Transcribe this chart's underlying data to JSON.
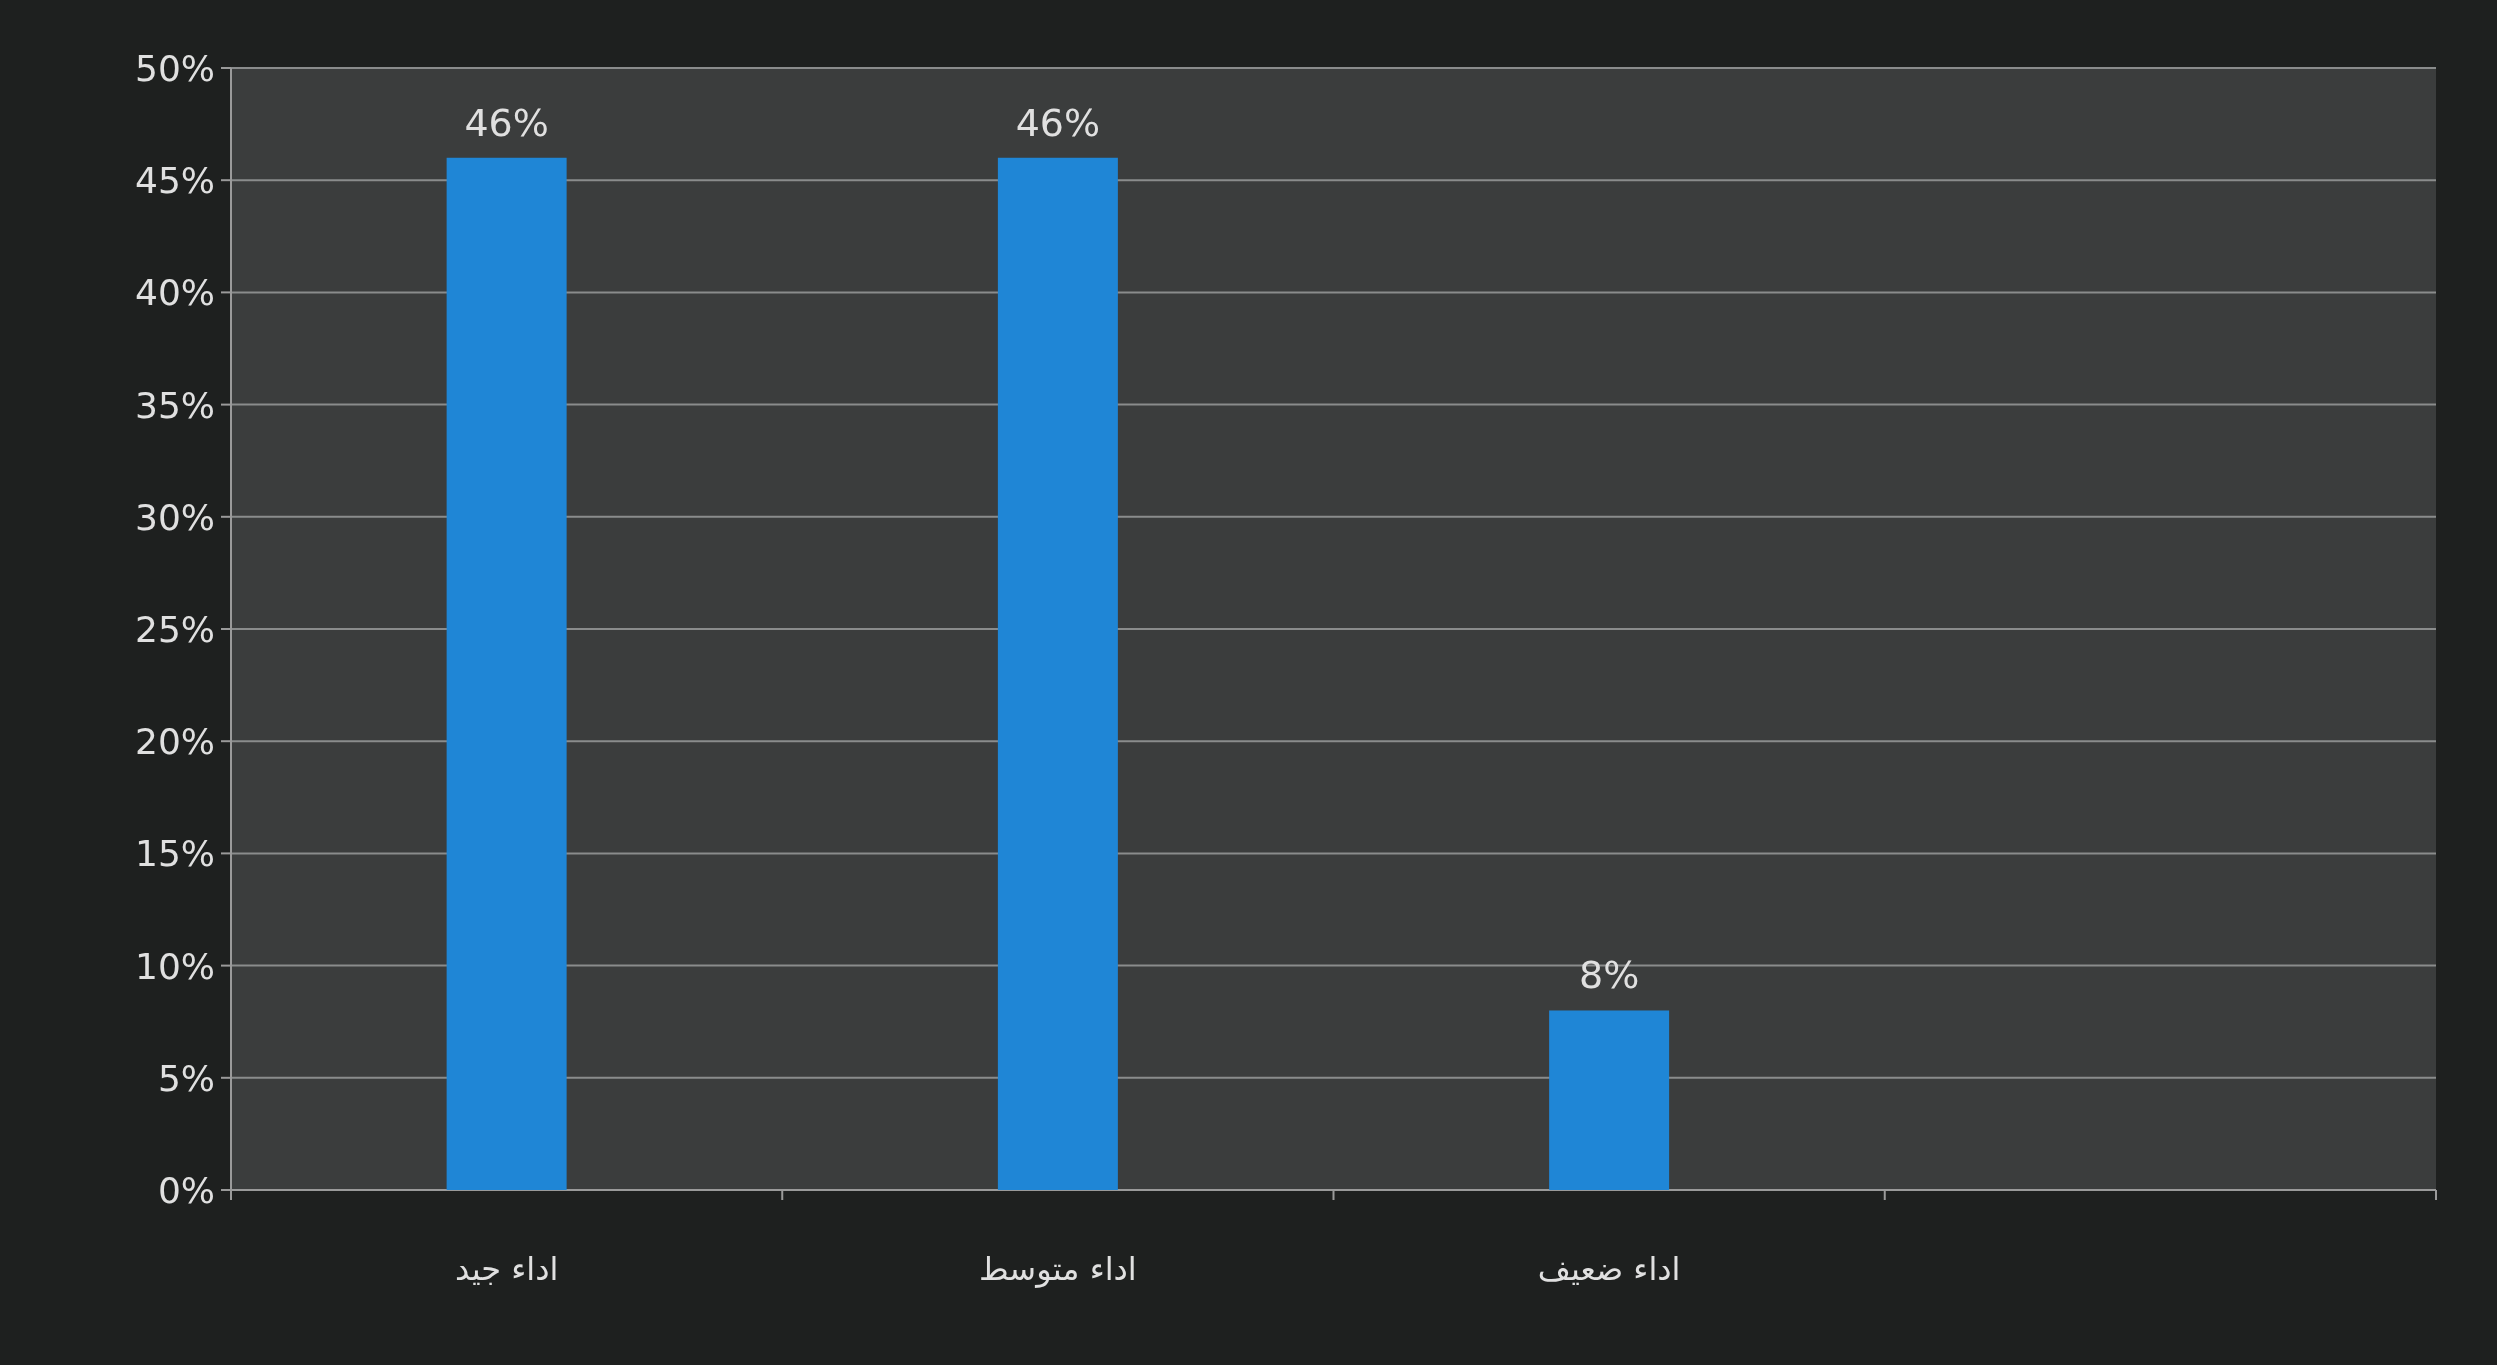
{
  "chart_data": {
    "type": "bar",
    "categories": [
      "اداء جيد",
      "اداء متوسط",
      "اداء ضعيف",
      null
    ],
    "values": [
      46,
      46,
      8,
      null
    ],
    "value_labels": [
      "46%",
      "46%",
      "8%",
      null
    ],
    "color": "#1f86d6",
    "ylim": [
      0,
      50
    ],
    "yticks": [
      {
        "value": 0,
        "label": "0%"
      },
      {
        "value": 5,
        "label": "5%"
      },
      {
        "value": 10,
        "label": "10%"
      },
      {
        "value": 15,
        "label": "15%"
      },
      {
        "value": 20,
        "label": "20%"
      },
      {
        "value": 25,
        "label": "25%"
      },
      {
        "value": 30,
        "label": "30%"
      },
      {
        "value": 35,
        "label": "35%"
      },
      {
        "value": 40,
        "label": "40%"
      },
      {
        "value": 45,
        "label": "45%"
      },
      {
        "value": 50,
        "label": "50%"
      }
    ],
    "grid": "y"
  }
}
